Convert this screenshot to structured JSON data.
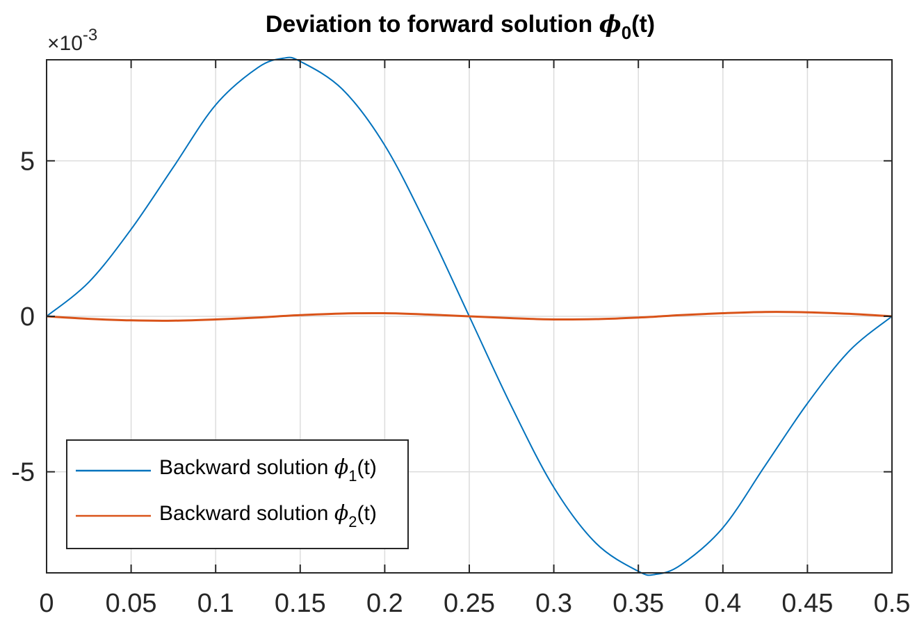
{
  "chart_data": {
    "type": "line",
    "title": "Deviation to forward solution",
    "title_symbol": "ϕ",
    "title_subscript": "0",
    "title_suffix": "(t)",
    "y_exponent_prefix": "×10",
    "y_exponent_power": "-3",
    "xlim": [
      0,
      0.5
    ],
    "ylim": [
      -0.00825,
      0.00825
    ],
    "grid": true,
    "legend_position": "bottom-left",
    "x_ticks": [
      {
        "value": 0,
        "label": "0"
      },
      {
        "value": 0.05,
        "label": "0.05"
      },
      {
        "value": 0.1,
        "label": "0.1"
      },
      {
        "value": 0.15,
        "label": "0.15"
      },
      {
        "value": 0.2,
        "label": "0.2"
      },
      {
        "value": 0.25,
        "label": "0.25"
      },
      {
        "value": 0.3,
        "label": "0.3"
      },
      {
        "value": 0.35,
        "label": "0.35"
      },
      {
        "value": 0.4,
        "label": "0.4"
      },
      {
        "value": 0.45,
        "label": "0.45"
      },
      {
        "value": 0.5,
        "label": "0.5"
      }
    ],
    "y_ticks": [
      {
        "value": -0.005,
        "label": "-5"
      },
      {
        "value": 0,
        "label": "0"
      },
      {
        "value": 0.005,
        "label": "5"
      }
    ],
    "x": [
      0,
      0.025,
      0.05,
      0.075,
      0.1,
      0.125,
      0.14,
      0.15,
      0.175,
      0.2,
      0.225,
      0.25,
      0.275,
      0.3,
      0.325,
      0.35,
      0.36,
      0.375,
      0.4,
      0.425,
      0.45,
      0.475,
      0.5
    ],
    "series": [
      {
        "name": "Backward solution",
        "legend_symbol": "ϕ",
        "legend_subscript": "1",
        "legend_suffix": "(t)",
        "color": "#0072BD",
        "values": [
          0,
          0.0011,
          0.0028,
          0.0048,
          0.0068,
          0.008,
          0.0083,
          0.0082,
          0.0073,
          0.0055,
          0.0029,
          0,
          -0.0029,
          -0.0055,
          -0.0073,
          -0.0082,
          -0.0083,
          -0.008,
          -0.0068,
          -0.0048,
          -0.0028,
          -0.0011,
          0
        ]
      },
      {
        "name": "Backward solution",
        "legend_symbol": "ϕ",
        "legend_subscript": "2",
        "legend_suffix": "(t)",
        "color": "#D95319",
        "values": [
          0,
          -8e-05,
          -0.00013,
          -0.00014,
          -0.0001,
          -4e-05,
          1e-05,
          4e-05,
          9e-05,
          0.0001,
          6e-05,
          0,
          -6e-05,
          -0.0001,
          -9e-05,
          -4e-05,
          -1e-05,
          4e-05,
          0.0001,
          0.00014,
          0.00013,
          8e-05,
          0
        ]
      }
    ]
  }
}
